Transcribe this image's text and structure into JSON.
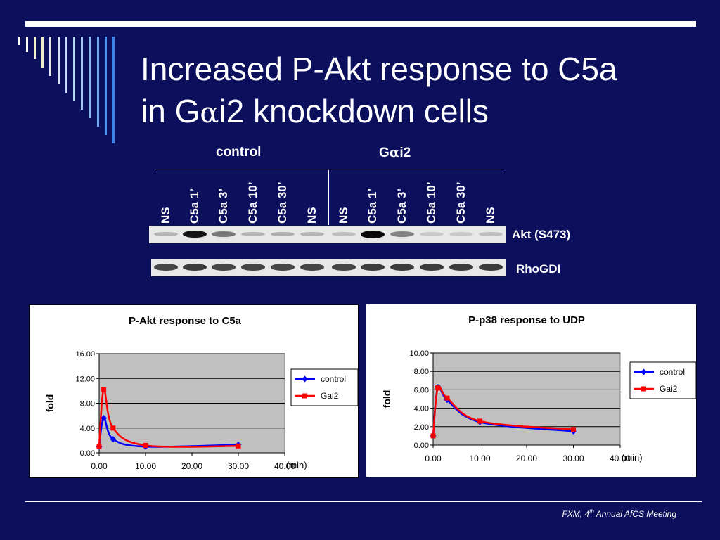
{
  "slide": {
    "title_line1": "Increased P-Akt response to C5a",
    "title_line2_pre": "in G",
    "title_line2_alpha": "α",
    "title_line2_post": "i2 knockdown cells",
    "footer_main": "FXM, 4",
    "footer_sup": "th",
    "footer_rest": " Annual AfCS Meeting"
  },
  "blot": {
    "group_control": "control",
    "group_gai2_pre": "G",
    "group_gai2_alpha": "α",
    "group_gai2_post": "i2",
    "lanes": [
      "NS",
      "C5a 1’",
      "C5a 3’",
      "C5a 10’",
      "C5a 30’",
      "NS",
      "NS",
      "C5a 1’",
      "C5a 3’",
      "C5a 10’",
      "C5a 30’",
      "NS"
    ],
    "akt_label": "Akt (S473)",
    "rhogdi_label": "RhoGDI",
    "akt_intensity": [
      0.15,
      0.95,
      0.45,
      0.15,
      0.18,
      0.15,
      0.1,
      1.0,
      0.4,
      0.05,
      0.05,
      0.1
    ],
    "rhogdi_intensity": [
      0.7,
      0.75,
      0.7,
      0.7,
      0.7,
      0.7,
      0.7,
      0.75,
      0.75,
      0.75,
      0.75,
      0.75
    ]
  },
  "chart_data": [
    {
      "type": "line",
      "title": "P-Akt response to C5a",
      "xlabel": "(min)",
      "ylabel": "fold",
      "xlim": [
        0,
        40
      ],
      "ylim": [
        0,
        16
      ],
      "yticks": [
        "0.00",
        "4.00",
        "8.00",
        "12.00",
        "16.00"
      ],
      "xticks": [
        "0.00",
        "10.00",
        "20.00",
        "30.00",
        "40.00"
      ],
      "grid": true,
      "legend": "right",
      "series": [
        {
          "name": "control",
          "color": "#0000ff",
          "marker": "diamond",
          "x": [
            0,
            1,
            3,
            10,
            30
          ],
          "y": [
            1.0,
            5.6,
            2.2,
            1.0,
            1.3
          ]
        },
        {
          "name": "Gai2",
          "color": "#ff0000",
          "marker": "square",
          "x": [
            0,
            1,
            3,
            10,
            30
          ],
          "y": [
            1.0,
            10.2,
            4.0,
            1.2,
            1.1
          ]
        }
      ]
    },
    {
      "type": "line",
      "title": "P-p38 response to UDP",
      "xlabel": "(min)",
      "ylabel": "fold",
      "xlim": [
        0,
        40
      ],
      "ylim": [
        0,
        10
      ],
      "yticks": [
        "0.00",
        "2.00",
        "4.00",
        "6.00",
        "8.00",
        "10.00"
      ],
      "xticks": [
        "0.00",
        "10.00",
        "20.00",
        "30.00",
        "40.00"
      ],
      "grid": true,
      "legend": "right",
      "series": [
        {
          "name": "control",
          "color": "#0000ff",
          "marker": "diamond",
          "x": [
            0,
            1,
            3,
            10,
            30
          ],
          "y": [
            1.0,
            6.3,
            4.9,
            2.5,
            1.5
          ]
        },
        {
          "name": "Gai2",
          "color": "#ff0000",
          "marker": "square",
          "x": [
            0,
            1,
            3,
            10,
            30
          ],
          "y": [
            1.0,
            6.2,
            5.1,
            2.6,
            1.7
          ]
        }
      ]
    }
  ]
}
